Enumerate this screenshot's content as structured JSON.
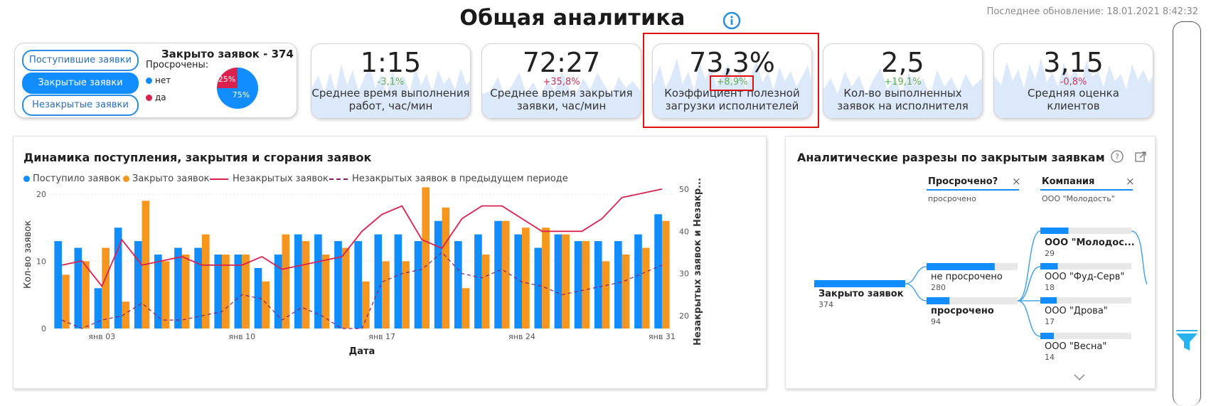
{
  "header": {
    "title": "Общая аналитика",
    "last_update": "Последнее обновление: 18.01.2021 8:42:32"
  },
  "filter_card": {
    "buttons": [
      "Поступившие заявки",
      "Закрытые заявки",
      "Незакрытые заявки"
    ],
    "active_index": 1,
    "closed_title": "Закрыто заявок - 374",
    "overdue_label": "Просрочены:",
    "legend_no": "нет",
    "legend_yes": "да",
    "pie_yes_pct": "25%",
    "pie_no_pct": "75%",
    "pie_yes_fraction": 0.25,
    "colors": {
      "no": "#118dff",
      "yes": "#d9214e"
    }
  },
  "kpis": [
    {
      "value": "1:15",
      "delta": "-3,1%",
      "delta_positive": true,
      "label_1": "Среднее время выполнения",
      "label_2": "работ, час/мин"
    },
    {
      "value": "72:27",
      "delta": "+35,8%",
      "delta_positive": false,
      "label_1": "Среднее время закрытия",
      "label_2": "заявки, час/мин"
    },
    {
      "value": "73,3%",
      "delta": "+8,9%",
      "delta_positive": true,
      "label_1": "Коэффициент полезной",
      "label_2": "загрузки исполнителей"
    },
    {
      "value": "2,5",
      "delta": "+19,1%",
      "delta_positive": true,
      "label_1": "Кол-во выполненных",
      "label_2": "заявок на исполнителя"
    },
    {
      "value": "3,15",
      "delta": "-0,8%",
      "delta_positive": false,
      "label_1": "Средняя оценка",
      "label_2": "клиентов"
    }
  ],
  "dynamics": {
    "title": "Динамика поступления, закрытия и сгорания заявок",
    "legend": [
      "Поступило заявок",
      "Закрыто заявок",
      "Незакрытых заявок",
      "Незакрытых заявок в предыдущем периоде"
    ]
  },
  "chart_data": {
    "type": "bar",
    "title": "Динамика поступления, закрытия и сгорания заявок",
    "xlabel": "Дата",
    "ylabel": "Кол-во заявок",
    "y2label": "Незакрытых заявок и Незакр...",
    "ylim": [
      0,
      22
    ],
    "y2lim": [
      17,
      52
    ],
    "y_ticks": [
      0,
      10,
      20
    ],
    "y2_ticks": [
      20,
      30,
      40,
      50
    ],
    "x_tick_labels": [
      {
        "label": "янв 03",
        "index": 2
      },
      {
        "label": "янв 10",
        "index": 9
      },
      {
        "label": "янв 17",
        "index": 16
      },
      {
        "label": "янв 24",
        "index": 23
      },
      {
        "label": "янв 31",
        "index": 30
      }
    ],
    "categories": [
      "01.01",
      "02.01",
      "03.01",
      "04.01",
      "05.01",
      "06.01",
      "07.01",
      "08.01",
      "09.01",
      "10.01",
      "11.01",
      "12.01",
      "13.01",
      "14.01",
      "15.01",
      "16.01",
      "17.01",
      "18.01",
      "19.01",
      "20.01",
      "21.01",
      "22.01",
      "23.01",
      "24.01",
      "25.01",
      "26.01",
      "27.01",
      "28.01",
      "29.01",
      "30.01",
      "31.01"
    ],
    "series": [
      {
        "name": "Поступило заявок",
        "kind": "bar",
        "axis": "left",
        "color": "#118dff",
        "values": [
          13,
          12,
          6,
          15,
          13,
          11,
          12,
          12,
          11,
          11,
          9,
          11,
          14,
          14,
          13,
          13,
          14,
          14,
          13,
          16,
          13,
          14,
          16,
          14,
          12,
          14,
          13,
          13,
          13,
          14,
          17
        ]
      },
      {
        "name": "Закрыто заявок",
        "kind": "bar",
        "axis": "left",
        "color": "#f7961e",
        "values": [
          8,
          10,
          12,
          4,
          19,
          10,
          11,
          14,
          11,
          11,
          7,
          14,
          13,
          11,
          12,
          7,
          10,
          10,
          21,
          18,
          6,
          11,
          16,
          15,
          15,
          14,
          13,
          10,
          11,
          12,
          16
        ]
      },
      {
        "name": "Незакрытых заявок",
        "kind": "line",
        "axis": "right",
        "color": "#d9214e",
        "dash": false,
        "values": [
          32,
          33,
          27,
          38,
          32,
          33,
          34,
          32,
          32,
          32,
          34,
          31,
          32,
          33,
          34,
          40,
          44,
          46,
          38,
          36,
          43,
          46,
          46,
          43,
          40,
          40,
          40,
          43,
          48,
          49,
          50
        ]
      },
      {
        "name": "Незакрытых заявок в предыдущем периоде",
        "kind": "line",
        "axis": "right",
        "color": "#8b1a6e",
        "dash": true,
        "values": [
          19,
          17,
          19,
          20,
          23,
          19,
          19,
          20,
          21,
          25,
          24,
          19,
          22,
          20,
          17,
          17,
          28,
          30,
          31,
          35,
          30,
          29,
          31,
          28,
          27,
          25,
          26,
          27,
          28,
          30,
          32
        ]
      }
    ]
  },
  "breakdown": {
    "title": "Аналитические разрезы по закрытым заявкам",
    "slicer1_title": "Просрочено?",
    "slicer1_value": "просрочено",
    "slicer2_title": "Компания",
    "slicer2_value": "ООО \"Молодость\"",
    "root": {
      "label": "Закрыто заявок",
      "value": "374",
      "num": 374
    },
    "level1": [
      {
        "label": "не просрочено",
        "value": "280",
        "num": 280,
        "bold": false
      },
      {
        "label": "просрочено",
        "value": "94",
        "num": 94,
        "bold": true
      }
    ],
    "level2": [
      {
        "label": "ООО \"Молодос...",
        "value": "29",
        "num": 29,
        "bold": true
      },
      {
        "label": "ООО \"Фуд-Серв\"",
        "value": "18",
        "num": 18,
        "bold": false
      },
      {
        "label": "ООО \"Дрова\"",
        "value": "17",
        "num": 17,
        "bold": false
      },
      {
        "label": "ООО \"Весна\"",
        "value": "14",
        "num": 14,
        "bold": false
      }
    ]
  }
}
